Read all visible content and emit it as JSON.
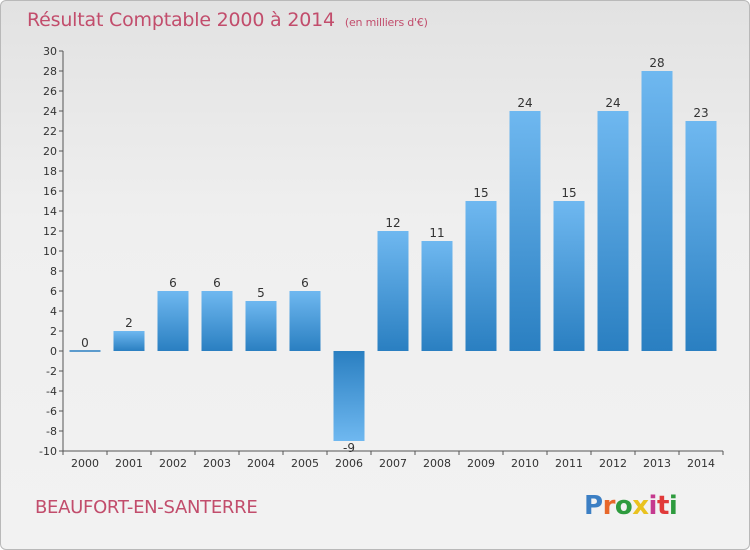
{
  "page": {
    "title": "Résultat Comptable 2000 à 2014",
    "unit_note": "(en milliers d'€)",
    "commune": "BEAUFORT-EN-SANTERRE",
    "logo_text": "Proxiti"
  },
  "colors": {
    "title": "#c24d6c",
    "bar_light": "#6fb8f0",
    "bar_dark": "#2a7fc1"
  },
  "chart_data": {
    "type": "bar",
    "title": "Résultat Comptable 2000 à 2014",
    "subtitle": "(en milliers d'€)",
    "categories": [
      "2000",
      "2001",
      "2002",
      "2003",
      "2004",
      "2005",
      "2006",
      "2007",
      "2008",
      "2009",
      "2010",
      "2011",
      "2012",
      "2013",
      "2014"
    ],
    "values": [
      0,
      2,
      6,
      6,
      5,
      6,
      -9,
      12,
      11,
      15,
      24,
      15,
      24,
      28,
      23
    ],
    "data_labels": [
      "0",
      "2",
      "6",
      "6",
      "5",
      "6",
      "-9",
      "12",
      "11",
      "15",
      "24",
      "15",
      "24",
      "28",
      "23"
    ],
    "ylim": [
      -10,
      30
    ],
    "yticks": [
      -10,
      -8,
      -6,
      -4,
      -2,
      0,
      2,
      4,
      6,
      8,
      10,
      12,
      14,
      16,
      18,
      20,
      22,
      24,
      26,
      28,
      30
    ],
    "grid": false,
    "legend": "none"
  }
}
